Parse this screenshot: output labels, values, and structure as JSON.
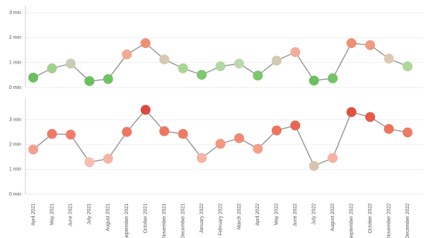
{
  "chart_data": [
    {
      "type": "line",
      "ylim": [
        0,
        3
      ],
      "yticks": [
        {
          "value": 0,
          "label": "0 min"
        },
        {
          "value": 1,
          "label": "1 min"
        },
        {
          "value": 2,
          "label": "2 min"
        },
        {
          "value": 3,
          "label": "3 min"
        }
      ],
      "grid": true,
      "series": [
        {
          "color": "#999999",
          "values": [
            0.4,
            0.77,
            0.96,
            0.26,
            0.34,
            1.33,
            1.78,
            1.13,
            0.77,
            0.51,
            0.85,
            0.96,
            0.48,
            1.08,
            1.42,
            0.28,
            0.37,
            1.78,
            1.7,
            1.16,
            0.85
          ],
          "point_colors": [
            "#6cbf5f",
            "#a2d08e",
            "#c8cdb6",
            "#6cbf5f",
            "#72c264",
            "#f2a996",
            "#ef8f74",
            "#d8c8b4",
            "#a8d594",
            "#7fc670",
            "#b0d8a0",
            "#bed8ae",
            "#7cc56c",
            "#d4c8b2",
            "#f3ad9c",
            "#6cbf5f",
            "#74c266",
            "#ef8f74",
            "#f09a82",
            "#dcc8b4",
            "#acd69a"
          ]
        }
      ]
    },
    {
      "type": "line",
      "ylim": [
        0,
        3.7
      ],
      "yticks": [
        {
          "value": 0,
          "label": "0 min"
        },
        {
          "value": 1,
          "label": "1 min"
        },
        {
          "value": 2,
          "label": "2 min"
        },
        {
          "value": 3,
          "label": "3 min"
        }
      ],
      "grid": true,
      "categories": [
        "April 2021",
        "May 2021",
        "June 2021",
        "July 2021",
        "August 2021",
        "September 2021",
        "October 2021",
        "November 2021",
        "December 2021",
        "January 2022",
        "February 2022",
        "March 2022",
        "April 2022",
        "May 2022",
        "June 2022",
        "July 2022",
        "August 2022",
        "September 2022",
        "October 2022",
        "November 2022",
        "December 2022"
      ],
      "series": [
        {
          "color": "#999999",
          "values": [
            1.8,
            2.43,
            2.4,
            1.29,
            1.43,
            2.51,
            3.4,
            2.54,
            2.43,
            1.46,
            2.03,
            2.26,
            1.83,
            2.57,
            2.77,
            1.14,
            1.46,
            3.31,
            3.11,
            2.63,
            2.49
          ],
          "point_colors": [
            "#f4a090",
            "#ee7b66",
            "#ef7e69",
            "#f6bfb0",
            "#f5b4a4",
            "#ee7761",
            "#dc4a3e",
            "#ee7660",
            "#ef7b66",
            "#f5b2a2",
            "#f3957f",
            "#f18a73",
            "#f39f8c",
            "#ed735d",
            "#e86652",
            "#d9c3b0",
            "#f5b2a2",
            "#e1513f",
            "#e45b47",
            "#ed735e",
            "#ef7b66"
          ]
        }
      ]
    }
  ]
}
